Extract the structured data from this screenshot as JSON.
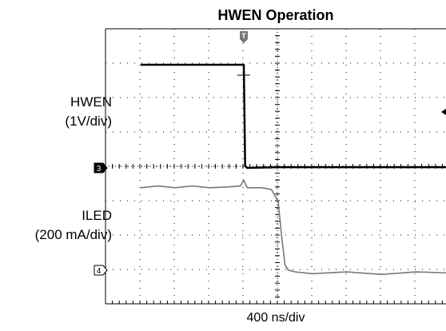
{
  "chart_data": {
    "type": "line",
    "title": "HWEN Operation",
    "xlabel": "400 ns/div",
    "grid": true,
    "x_divisions": 10,
    "y_divisions": 8,
    "x": [
      -3.0,
      -2.0,
      -1.0,
      0.0,
      0.02,
      0.04,
      0.1,
      1.0,
      2.0,
      3.0,
      4.0,
      5.0,
      6.0,
      7.0
    ],
    "series": [
      {
        "name": "HWEN",
        "label_line1": "HWEN",
        "label_line2": "(1V/div)",
        "channel_marker": "3",
        "color": "#000000",
        "x": [
          -3.0,
          -2.0,
          -1.0,
          0.0,
          0.02,
          0.04,
          0.1,
          1.0,
          2.0,
          3.0,
          4.0,
          5.0,
          6.0,
          7.0
        ],
        "values": [
          3.0,
          3.0,
          3.0,
          3.0,
          1.5,
          0.05,
          0.0,
          0.02,
          0.02,
          0.02,
          0.02,
          0.02,
          0.02,
          0.02
        ]
      },
      {
        "name": "ILED",
        "label_line1": "ILED",
        "label_line2": "(200 mA/div)",
        "channel_marker": "4",
        "color": "#777777",
        "x": [
          -3.0,
          -2.5,
          -2.0,
          -1.5,
          -1.0,
          -0.5,
          -0.1,
          0.0,
          0.1,
          0.5,
          0.8,
          1.0,
          1.1,
          1.2,
          1.3,
          1.5,
          2.0,
          3.0,
          4.0,
          5.0,
          6.0,
          7.0
        ],
        "values": [
          2.4,
          2.45,
          2.4,
          2.45,
          2.4,
          2.42,
          2.45,
          2.62,
          2.4,
          2.4,
          2.35,
          2.0,
          1.0,
          0.15,
          0.0,
          -0.05,
          -0.1,
          -0.05,
          -0.12,
          -0.05,
          -0.08,
          -0.05
        ]
      }
    ],
    "trigger_marker": "T"
  }
}
